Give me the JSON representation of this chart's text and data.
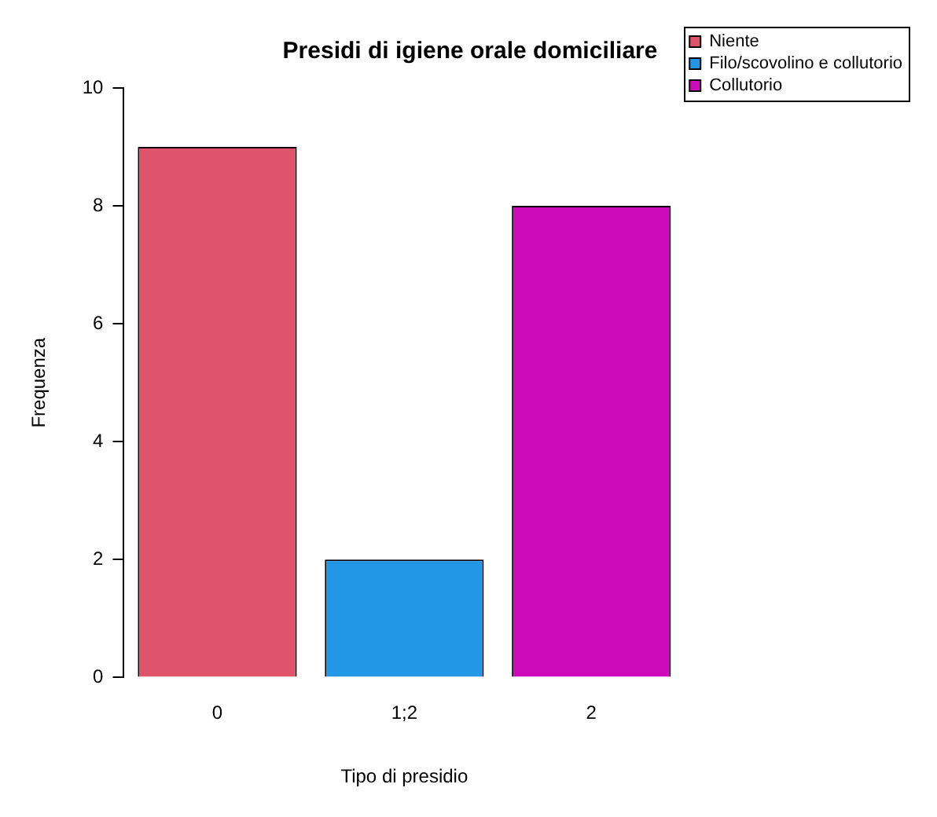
{
  "chart_data": {
    "type": "bar",
    "title": "Presidi di igiene orale domiciliare",
    "xlabel": "Tipo di presidio",
    "ylabel": "Frequenza",
    "categories": [
      "0",
      "1;2",
      "2"
    ],
    "series": [
      {
        "name": "Niente",
        "color": "#df536b",
        "values": [
          9,
          null,
          null
        ]
      },
      {
        "name": "Filo/scovolino e collutorio",
        "color": "#2297e6",
        "values": [
          null,
          2,
          null
        ]
      },
      {
        "name": "Collutorio",
        "color": "#cd0bbc",
        "values": [
          null,
          null,
          8
        ]
      }
    ],
    "ylim": [
      0,
      10
    ],
    "yticks": [
      0,
      2,
      4,
      6,
      8,
      10
    ],
    "grid": false,
    "legend": "top right"
  }
}
